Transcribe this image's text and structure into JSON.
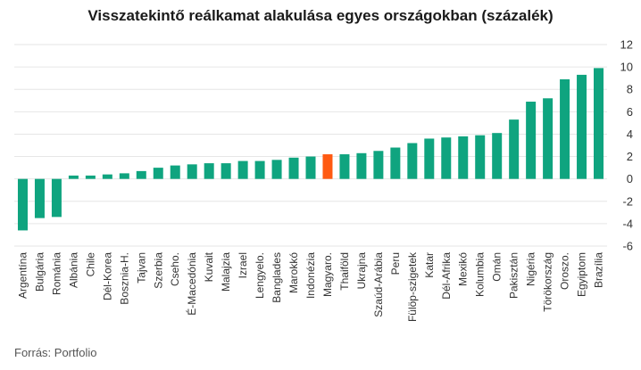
{
  "title": "Visszatekintő reálkamat alakulása egyes országokban (százalék)",
  "source": "Forrás: Portfolio",
  "colors": {
    "bar": "#0fa47f",
    "highlight": "#ff5a12",
    "grid": "#e6e6e6"
  },
  "chart_data": {
    "type": "bar",
    "title": "Visszatekintő reálkamat alakulása egyes országokban (százalék)",
    "xlabel": "",
    "ylabel": "",
    "ylim": [
      -6,
      12
    ],
    "yticks": [
      -6,
      -4,
      -2,
      0,
      2,
      4,
      6,
      8,
      10,
      12
    ],
    "grid": true,
    "y_axis_side": "right",
    "highlight_category": "Magyaro.",
    "categories": [
      "Argentína",
      "Bulgária",
      "Románia",
      "Albánia",
      "Chile",
      "Dél-Korea",
      "Bosznia-H.",
      "Tajvan",
      "Szerbia",
      "Cseho.",
      "É-Macedónia",
      "Kuvait",
      "Malajzia",
      "Izrael",
      "Lengyelo.",
      "Banglades",
      "Marokkó",
      "Indonézia",
      "Magyaro.",
      "Thaiföld",
      "Ukrajna",
      "Szaúd-Arábia",
      "Peru",
      "Fülöp-szigetek",
      "Katar",
      "Dél-Afrika",
      "Mexikó",
      "Kolumbia",
      "Omán",
      "Pakisztán",
      "Nigéria",
      "Törökország",
      "Oroszo.",
      "Egyiptom",
      "Brazília"
    ],
    "values": [
      -4.6,
      -3.5,
      -3.4,
      0.3,
      0.3,
      0.4,
      0.5,
      0.7,
      1.0,
      1.2,
      1.3,
      1.4,
      1.4,
      1.6,
      1.6,
      1.7,
      1.9,
      2.0,
      2.2,
      2.2,
      2.3,
      2.5,
      2.8,
      3.2,
      3.6,
      3.7,
      3.8,
      3.9,
      4.1,
      5.3,
      6.9,
      7.2,
      8.9,
      9.3,
      9.9
    ]
  }
}
